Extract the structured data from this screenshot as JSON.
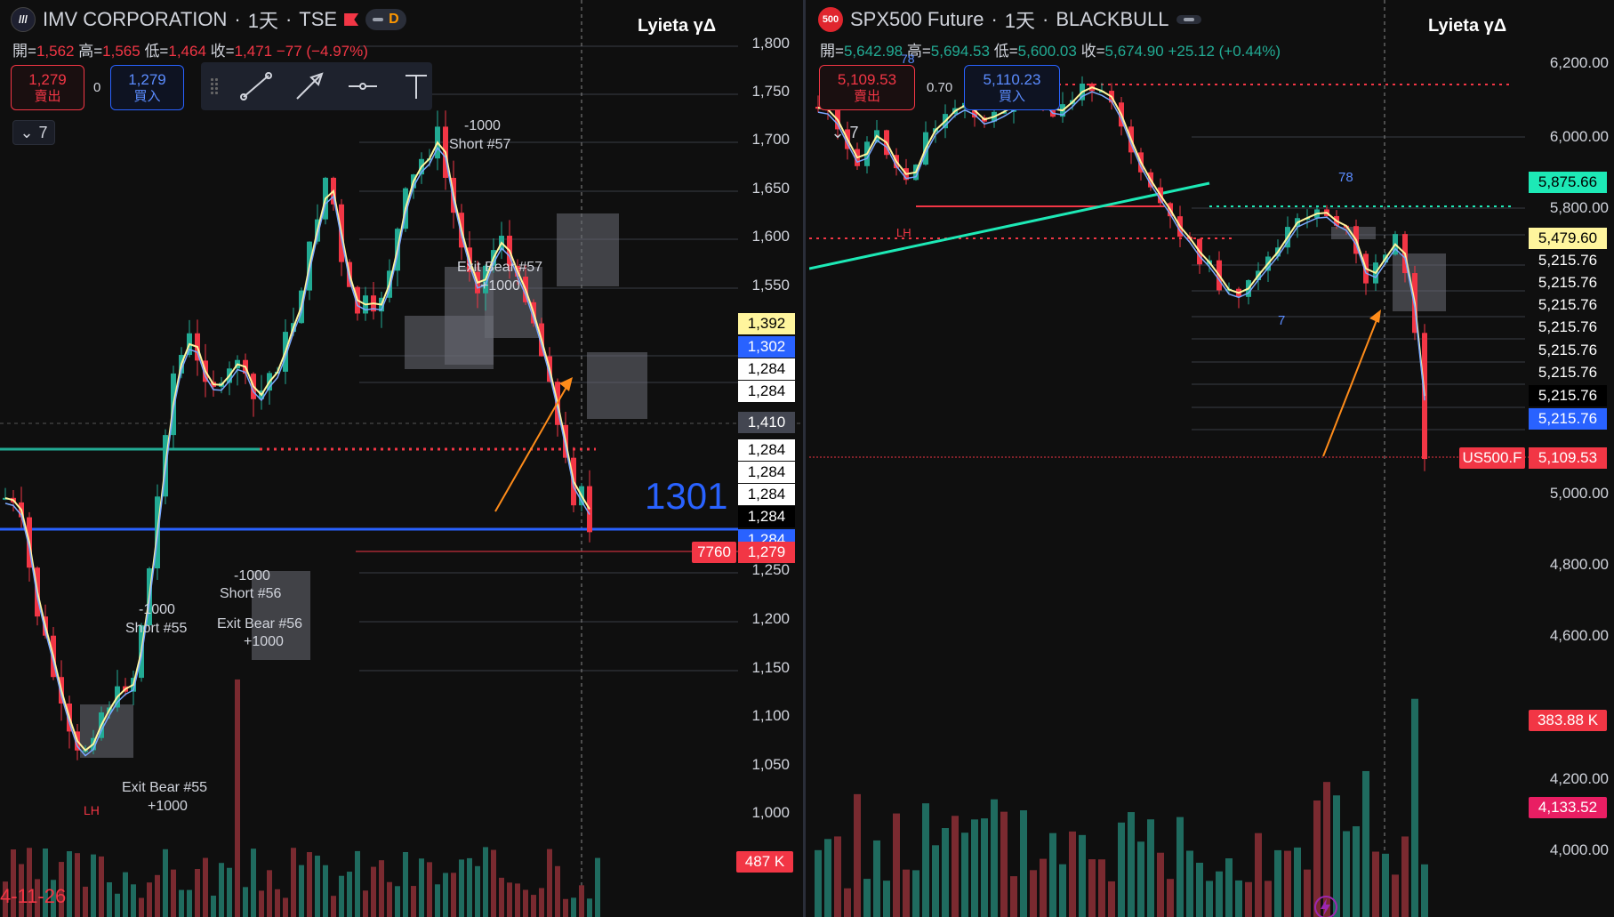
{
  "left": {
    "symbol_name": "IMV CORPORATION",
    "timeframe": "1天",
    "exchange": "TSE",
    "interval_pill": "D",
    "ohlc": {
      "open_label": "開=",
      "open": "1,562",
      "high_label": "高=",
      "high": "1,565",
      "low_label": "低=",
      "low": "1,464",
      "close_label": "收=",
      "close": "1,471",
      "change": "−77 (−4.97%)"
    },
    "brand": "Lyieta γΔ",
    "sell": {
      "price": "1,279",
      "label": "賣出"
    },
    "spread": "0",
    "buy": {
      "price": "1,279",
      "label": "買入"
    },
    "collapse_count": "7",
    "axis_ticks": [
      "1,800",
      "1,750",
      "1,700",
      "1,650",
      "1,600",
      "1,550",
      "1,250",
      "1,200",
      "1,150",
      "1,100",
      "1,050",
      "1,000"
    ],
    "price_tags": [
      {
        "text": "1,392",
        "bg": "#fff59d",
        "fg": "#000000"
      },
      {
        "text": "1,302",
        "bg": "#2962ff",
        "fg": "#ffffff"
      },
      {
        "text": "1,284",
        "bg": "#ffffff",
        "fg": "#000000"
      },
      {
        "text": "1,284",
        "bg": "#ffffff",
        "fg": "#000000"
      },
      {
        "text": "1,410",
        "bg": "#434651",
        "fg": "#ffffff"
      },
      {
        "text": "1,284",
        "bg": "#ffffff",
        "fg": "#000000"
      },
      {
        "text": "1,284",
        "bg": "#ffffff",
        "fg": "#000000"
      },
      {
        "text": "1,284",
        "bg": "#ffffff",
        "fg": "#000000"
      },
      {
        "text": "1,284",
        "bg": "#000000",
        "fg": "#ffffff"
      },
      {
        "text": "1,284",
        "bg": "#2962ff",
        "fg": "#ffffff"
      },
      {
        "text": "1,279",
        "bg": "#f23645",
        "fg": "#ffffff"
      }
    ],
    "last_price_left_tag": "7760",
    "volume_tag": "487 K",
    "big_number": "1301",
    "date_label": "4-11-26",
    "annotations": {
      "short57_qty": "-1000",
      "short57": "Short #57",
      "exit57": "Exit Bear #57",
      "exit57_qty": "+1000",
      "short56_qty": "-1000",
      "short56": "Short #56",
      "exit56": "Exit Bear #56",
      "exit56_qty": "+1000",
      "short55_qty": "-1000",
      "short55": "Short #55",
      "exit55": "Exit Bear #55",
      "exit55_qty": "+1000",
      "lh": "LH"
    }
  },
  "right": {
    "symbol_logo": "500",
    "symbol_name": "SPX500 Future",
    "timeframe": "1天",
    "exchange": "BLACKBULL",
    "ohlc": {
      "open_label": "開=",
      "open": "5,642.98",
      "high_label": "高=",
      "high": "5,694.53",
      "low_label": "低=",
      "low": "5,600.03",
      "close_label": "收=",
      "close": "5,674.90",
      "change": "+25.12 (+0.44%)"
    },
    "brand": "Lyieta γΔ",
    "sell": {
      "price": "5,109.53",
      "label": "賣出"
    },
    "spread": "0.70",
    "buy": {
      "price": "5,110.23",
      "label": "買入"
    },
    "collapse_count": "7",
    "axis_ticks": [
      "6,200.00",
      "6,000.00",
      "5,800.00",
      "5,000.00",
      "4,800.00",
      "4,600.00",
      "4,200.00",
      "4,000.00"
    ],
    "price_tags": [
      {
        "text": "5,875.66",
        "bg": "#1de9b6",
        "fg": "#000000"
      },
      {
        "text": "5,479.60",
        "bg": "#fff59d",
        "fg": "#000000"
      },
      {
        "text": "5,215.76",
        "bg": "#0f0f0f",
        "fg": "#ffffff"
      },
      {
        "text": "5,215.76",
        "bg": "#0f0f0f",
        "fg": "#ffffff"
      },
      {
        "text": "5,215.76",
        "bg": "#0f0f0f",
        "fg": "#ffffff"
      },
      {
        "text": "5,215.76",
        "bg": "#0f0f0f",
        "fg": "#ffffff"
      },
      {
        "text": "5,215.76",
        "bg": "#0f0f0f",
        "fg": "#ffffff"
      },
      {
        "text": "5,215.76",
        "bg": "#0f0f0f",
        "fg": "#ffffff"
      },
      {
        "text": "5,215.76",
        "bg": "#000000",
        "fg": "#ffffff"
      },
      {
        "text": "5,215.76",
        "bg": "#2962ff",
        "fg": "#ffffff"
      },
      {
        "text": "5,109.53",
        "bg": "#f23645",
        "fg": "#ffffff"
      }
    ],
    "symbol_tag": "US500.F",
    "volume_tags": [
      {
        "text": "383.88 K",
        "bg": "#f23645",
        "fg": "#ffffff"
      },
      {
        "text": "4,133.52",
        "bg": "#e91e63",
        "fg": "#ffffff"
      }
    ],
    "annotations": {
      "lh": "LH",
      "n78": "78",
      "n7": "7"
    }
  }
}
